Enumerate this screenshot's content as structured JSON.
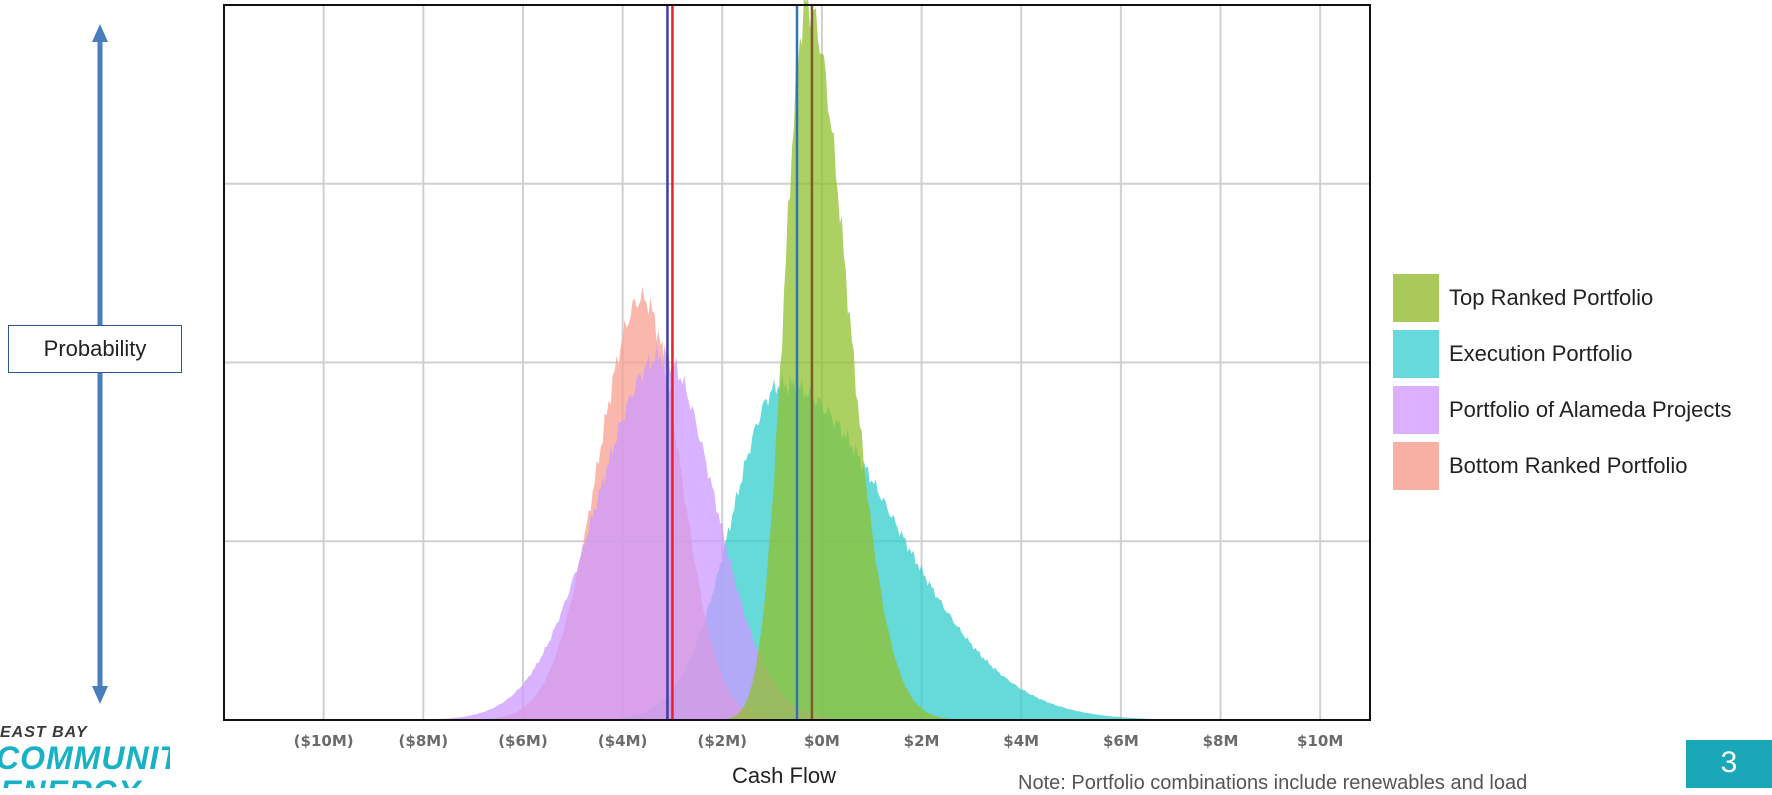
{
  "chart_data": {
    "type": "area",
    "title": "",
    "xlabel": "Cash Flow",
    "ylabel": "Probability",
    "xlim": [
      -12,
      11
    ],
    "ylim": [
      0,
      1
    ],
    "x_ticks": [
      {
        "value": -10,
        "label": "($10M)"
      },
      {
        "value": -8,
        "label": "($8M)"
      },
      {
        "value": -6,
        "label": "($6M)"
      },
      {
        "value": -4,
        "label": "($4M)"
      },
      {
        "value": -2,
        "label": "($2M)"
      },
      {
        "value": 0,
        "label": "$0M"
      },
      {
        "value": 2,
        "label": "$2M"
      },
      {
        "value": 4,
        "label": "$4M"
      },
      {
        "value": 6,
        "label": "$6M"
      },
      {
        "value": 8,
        "label": "$8M"
      },
      {
        "value": 10,
        "label": "$10M"
      }
    ],
    "y_gridlines": [
      0.25,
      0.5,
      0.75
    ],
    "grid": true,
    "legend_position": "right",
    "series": [
      {
        "name": "Top Ranked Portfolio",
        "color": "#92c02f",
        "peak": -0.3,
        "height": 1.0,
        "sigma_left": 0.45,
        "sigma_right": 0.8,
        "mean": -0.2,
        "mean_line_color": "#7a5c2e"
      },
      {
        "name": "Execution Portfolio",
        "color": "#33cccc",
        "peak": -0.8,
        "height": 0.47,
        "sigma_left": 1.0,
        "sigma_right": 2.2,
        "mean": -0.5,
        "mean_line_color": "#2e75b6"
      },
      {
        "name": "Portfolio of Alameda Projects",
        "color": "#cc99ff",
        "peak": -3.2,
        "height": 0.51,
        "sigma_left": 1.3,
        "sigma_right": 1.05,
        "mean": -3.1,
        "mean_line_color": "#3f3f9f"
      },
      {
        "name": "Bottom Ranked Portfolio",
        "color": "#f8a090",
        "peak": -3.6,
        "height": 0.59,
        "sigma_left": 0.9,
        "sigma_right": 0.75,
        "mean": -3.0,
        "mean_line_color": "#e8202a"
      }
    ]
  },
  "logo": {
    "line1": "EAST BAY",
    "line2": "COMMUNITY",
    "line3": "ENERGY"
  },
  "note": "Note: Portfolio combinations include renewables and load",
  "page_number": "3"
}
